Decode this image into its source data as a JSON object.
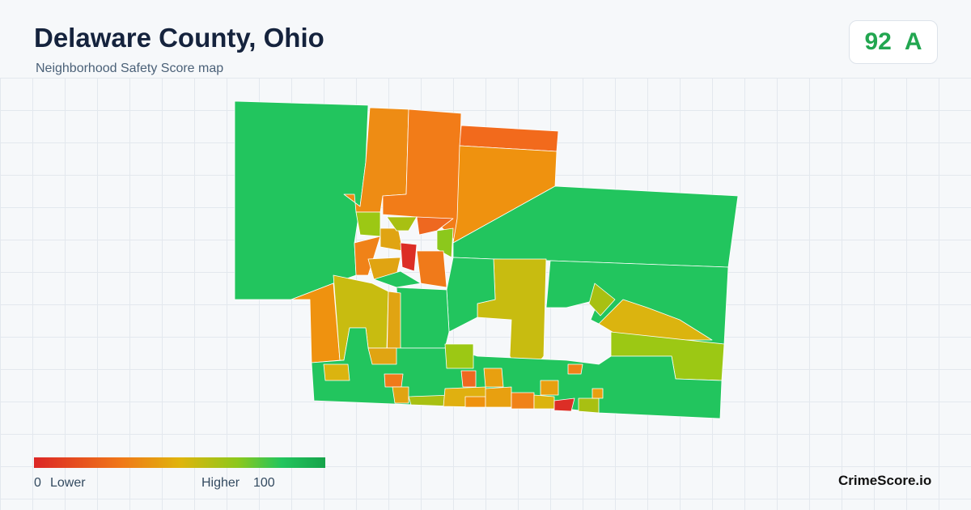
{
  "header": {
    "title": "Delaware County, Ohio",
    "subtitle": "Neighborhood Safety Score map"
  },
  "badge": {
    "score": "92",
    "grade": "A"
  },
  "legend": {
    "min": "0",
    "min_label": "Lower",
    "max_label": "Higher",
    "max": "100"
  },
  "footer": {
    "brand": "CrimeScore.io"
  }
}
